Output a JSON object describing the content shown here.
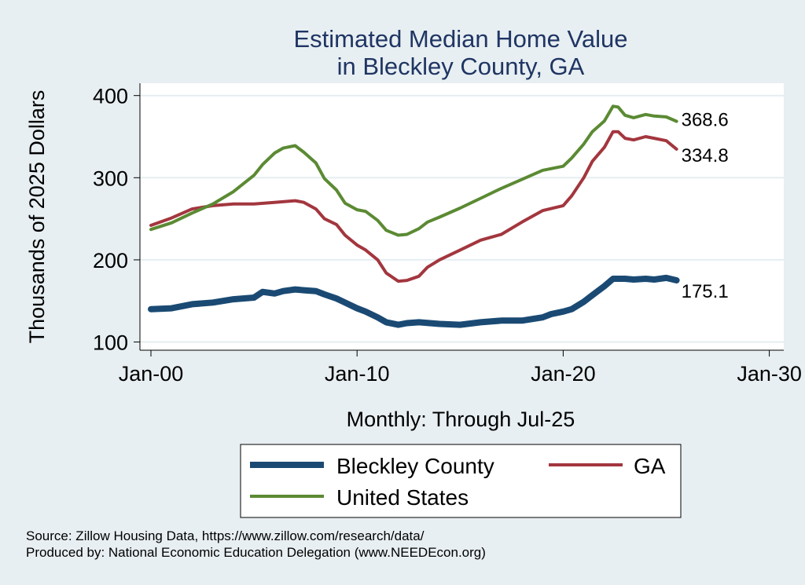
{
  "chart_data": {
    "type": "line",
    "title": [
      "Estimated Median Home Value",
      "in Bleckley County, GA"
    ],
    "ylabel": "Thousands of 2025 Dollars",
    "xlabel": "Monthly: Through Jul-25",
    "x_ticks": [
      "Jan-00",
      "Jan-10",
      "Jan-20",
      "Jan-30"
    ],
    "y_ticks": [
      100,
      200,
      300,
      400
    ],
    "xlim": [
      "2000-01",
      "2030-01"
    ],
    "ylim": [
      90,
      415
    ],
    "grid": true,
    "legend_position": "bottom",
    "series": [
      {
        "name": "Bleckley County",
        "color": "#1a4a73",
        "end_label": "175.1",
        "points": [
          [
            "2000-01",
            140
          ],
          [
            "2001-01",
            141
          ],
          [
            "2002-01",
            146
          ],
          [
            "2003-01",
            148
          ],
          [
            "2004-01",
            152
          ],
          [
            "2005-01",
            154
          ],
          [
            "2005-06",
            161
          ],
          [
            "2006-01",
            159
          ],
          [
            "2006-06",
            162
          ],
          [
            "2007-01",
            164
          ],
          [
            "2007-06",
            163
          ],
          [
            "2008-01",
            162
          ],
          [
            "2008-06",
            158
          ],
          [
            "2009-01",
            153
          ],
          [
            "2009-06",
            148
          ],
          [
            "2010-01",
            141
          ],
          [
            "2010-06",
            137
          ],
          [
            "2011-01",
            130
          ],
          [
            "2011-06",
            124
          ],
          [
            "2012-01",
            121
          ],
          [
            "2012-06",
            123
          ],
          [
            "2013-01",
            124
          ],
          [
            "2014-01",
            122
          ],
          [
            "2015-01",
            121
          ],
          [
            "2016-01",
            124
          ],
          [
            "2017-01",
            126
          ],
          [
            "2018-01",
            126
          ],
          [
            "2019-01",
            130
          ],
          [
            "2019-06",
            134
          ],
          [
            "2020-01",
            137
          ],
          [
            "2020-06",
            140
          ],
          [
            "2021-01",
            149
          ],
          [
            "2021-06",
            157
          ],
          [
            "2022-01",
            168
          ],
          [
            "2022-06",
            177
          ],
          [
            "2023-01",
            177
          ],
          [
            "2023-06",
            176
          ],
          [
            "2024-01",
            177
          ],
          [
            "2024-06",
            176
          ],
          [
            "2025-01",
            178
          ],
          [
            "2025-07",
            175.1
          ]
        ]
      },
      {
        "name": "GA",
        "color": "#a3363e",
        "end_label": "334.8",
        "points": [
          [
            "2000-01",
            242
          ],
          [
            "2001-01",
            251
          ],
          [
            "2002-01",
            262
          ],
          [
            "2003-01",
            266
          ],
          [
            "2004-01",
            268
          ],
          [
            "2005-01",
            268
          ],
          [
            "2006-01",
            270
          ],
          [
            "2007-01",
            272
          ],
          [
            "2007-06",
            270
          ],
          [
            "2008-01",
            262
          ],
          [
            "2008-06",
            250
          ],
          [
            "2009-01",
            243
          ],
          [
            "2009-06",
            230
          ],
          [
            "2010-01",
            218
          ],
          [
            "2010-06",
            212
          ],
          [
            "2011-01",
            200
          ],
          [
            "2011-06",
            184
          ],
          [
            "2012-01",
            174
          ],
          [
            "2012-06",
            175
          ],
          [
            "2013-01",
            180
          ],
          [
            "2013-06",
            191
          ],
          [
            "2014-01",
            200
          ],
          [
            "2015-01",
            212
          ],
          [
            "2016-01",
            224
          ],
          [
            "2017-01",
            231
          ],
          [
            "2018-01",
            246
          ],
          [
            "2019-01",
            260
          ],
          [
            "2020-01",
            266
          ],
          [
            "2020-06",
            278
          ],
          [
            "2021-01",
            300
          ],
          [
            "2021-06",
            320
          ],
          [
            "2022-01",
            337
          ],
          [
            "2022-06",
            356
          ],
          [
            "2022-09",
            356
          ],
          [
            "2023-01",
            348
          ],
          [
            "2023-06",
            346
          ],
          [
            "2024-01",
            350
          ],
          [
            "2024-06",
            348
          ],
          [
            "2025-01",
            345
          ],
          [
            "2025-07",
            334.8
          ]
        ]
      },
      {
        "name": "United States",
        "color": "#5b8a33",
        "end_label": "368.6",
        "points": [
          [
            "2000-01",
            237
          ],
          [
            "2001-01",
            245
          ],
          [
            "2002-01",
            257
          ],
          [
            "2003-01",
            268
          ],
          [
            "2004-01",
            283
          ],
          [
            "2005-01",
            303
          ],
          [
            "2005-06",
            316
          ],
          [
            "2006-01",
            330
          ],
          [
            "2006-06",
            336
          ],
          [
            "2007-01",
            339
          ],
          [
            "2007-06",
            331
          ],
          [
            "2008-01",
            318
          ],
          [
            "2008-06",
            299
          ],
          [
            "2009-01",
            285
          ],
          [
            "2009-06",
            269
          ],
          [
            "2010-01",
            261
          ],
          [
            "2010-06",
            259
          ],
          [
            "2011-01",
            248
          ],
          [
            "2011-06",
            236
          ],
          [
            "2012-01",
            230
          ],
          [
            "2012-06",
            231
          ],
          [
            "2013-01",
            238
          ],
          [
            "2013-06",
            246
          ],
          [
            "2014-01",
            252
          ],
          [
            "2015-01",
            263
          ],
          [
            "2016-01",
            275
          ],
          [
            "2017-01",
            287
          ],
          [
            "2018-01",
            298
          ],
          [
            "2019-01",
            309
          ],
          [
            "2020-01",
            314
          ],
          [
            "2020-06",
            324
          ],
          [
            "2021-01",
            341
          ],
          [
            "2021-06",
            356
          ],
          [
            "2022-01",
            369
          ],
          [
            "2022-06",
            387
          ],
          [
            "2022-09",
            386
          ],
          [
            "2023-01",
            376
          ],
          [
            "2023-06",
            373
          ],
          [
            "2024-01",
            377
          ],
          [
            "2024-06",
            375
          ],
          [
            "2025-01",
            374
          ],
          [
            "2025-07",
            368.6
          ]
        ]
      }
    ]
  },
  "notes": {
    "source": "Source: Zillow Housing Data, https://www.zillow.com/research/data/",
    "produced_by": "Produced by: National Economic Education Delegation (www.NEEDEcon.org)"
  }
}
